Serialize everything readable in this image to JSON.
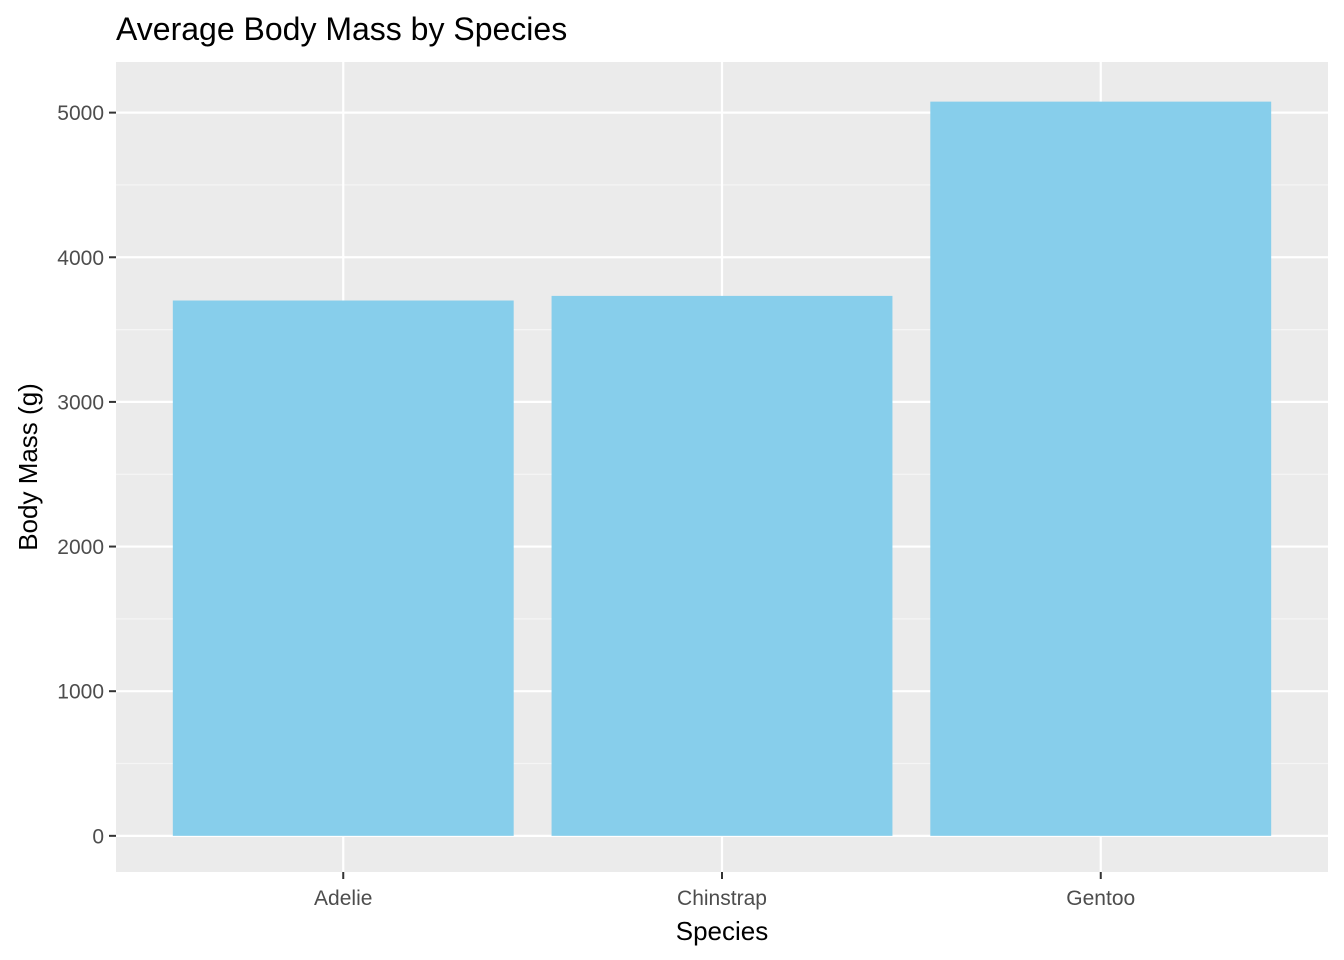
{
  "chart_data": {
    "type": "bar",
    "title": "Average Body Mass by Species",
    "xlabel": "Species",
    "ylabel": "Body Mass (g)",
    "categories": [
      "Adelie",
      "Chinstrap",
      "Gentoo"
    ],
    "values": [
      3701,
      3733,
      5076
    ],
    "ylim": [
      -250,
      5350
    ],
    "yticks": [
      0,
      1000,
      2000,
      3000,
      4000,
      5000
    ],
    "ytick_labels": [
      "0",
      "1000",
      "2000",
      "3000",
      "4000",
      "5000"
    ],
    "grid": true,
    "legend": "none"
  },
  "colors": {
    "bar": "#87CEEB",
    "panel": "#EBEBEB",
    "grid_major": "#FFFFFF",
    "grid_minor": "#F5F5F5",
    "tick": "#333333",
    "tick_label": "#4D4D4D"
  }
}
